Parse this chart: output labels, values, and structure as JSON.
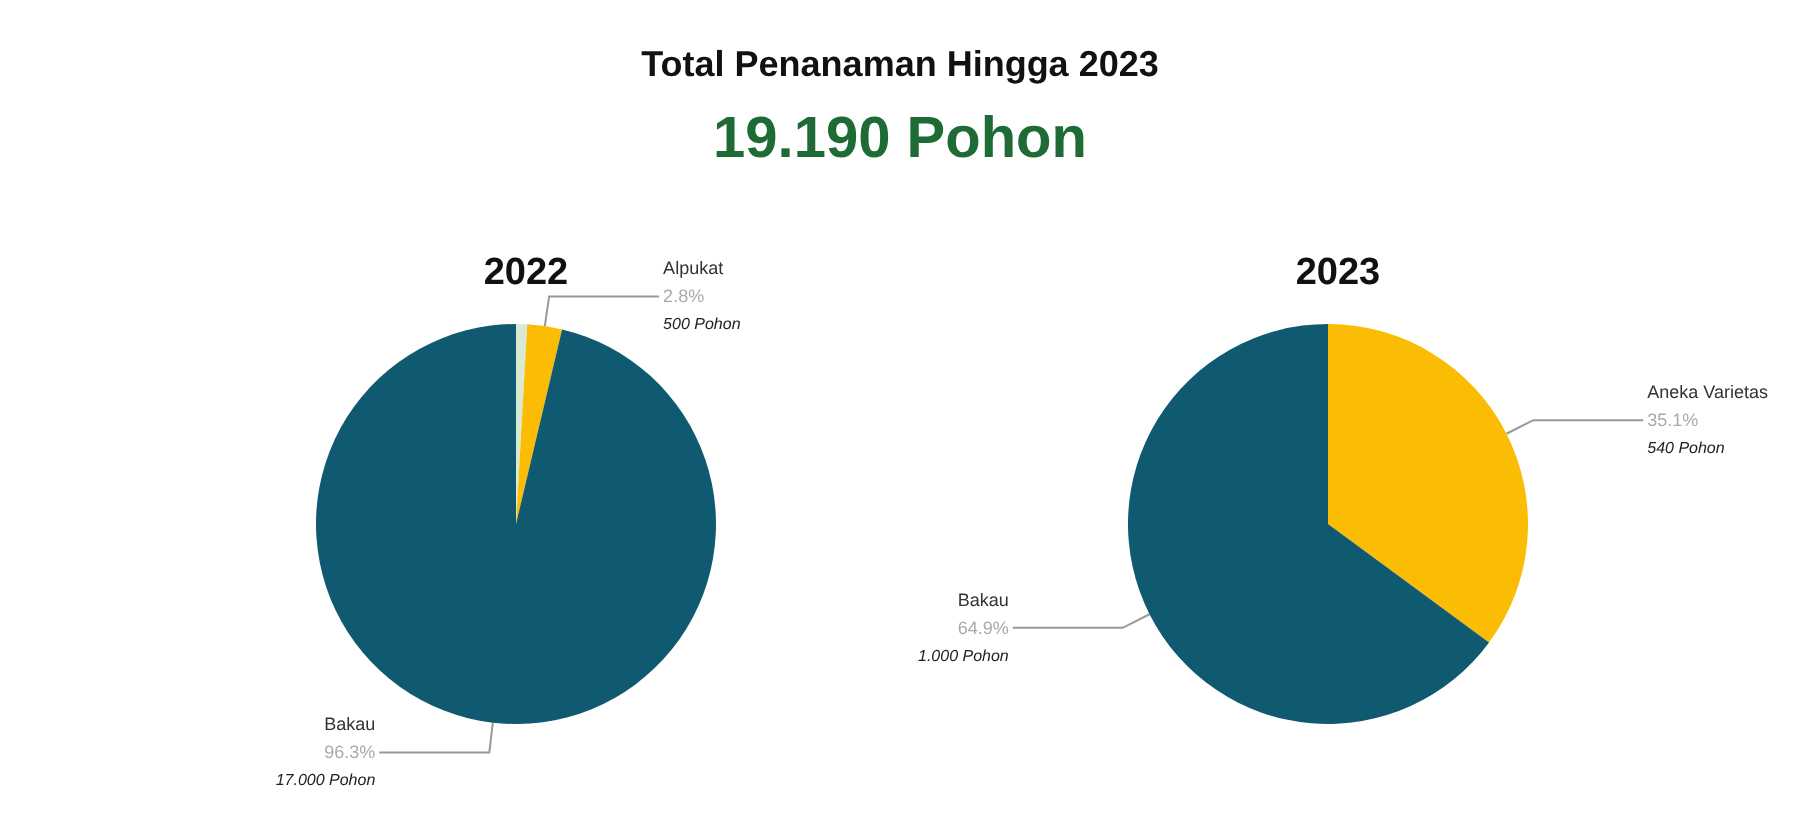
{
  "chart_data": [
    {
      "type": "other",
      "title": "Total Penanaman Hingga 2023",
      "subtitle": "19.190 Pohon"
    },
    {
      "type": "pie",
      "title": "2022",
      "categories": [
        null,
        "Alpukat",
        "Bakau"
      ],
      "values": [
        0.9,
        2.8,
        96.3
      ],
      "colors": [
        "#d9ead3",
        "#fbbc04",
        "#0f5a70"
      ],
      "value_labels": [
        null,
        "2.8%\n500 Pohon",
        "96.3%\n17.000 Pohon"
      ]
    },
    {
      "type": "pie",
      "title": "2023",
      "categories": [
        "Aneka Varietas",
        "Bakau"
      ],
      "values": [
        35.1,
        64.9
      ],
      "colors": [
        "#fbbc04",
        "#0f5a70"
      ],
      "value_labels": [
        "35.1%\n540 Pohon",
        "64.9%\n1.000 Pohon"
      ]
    }
  ]
}
